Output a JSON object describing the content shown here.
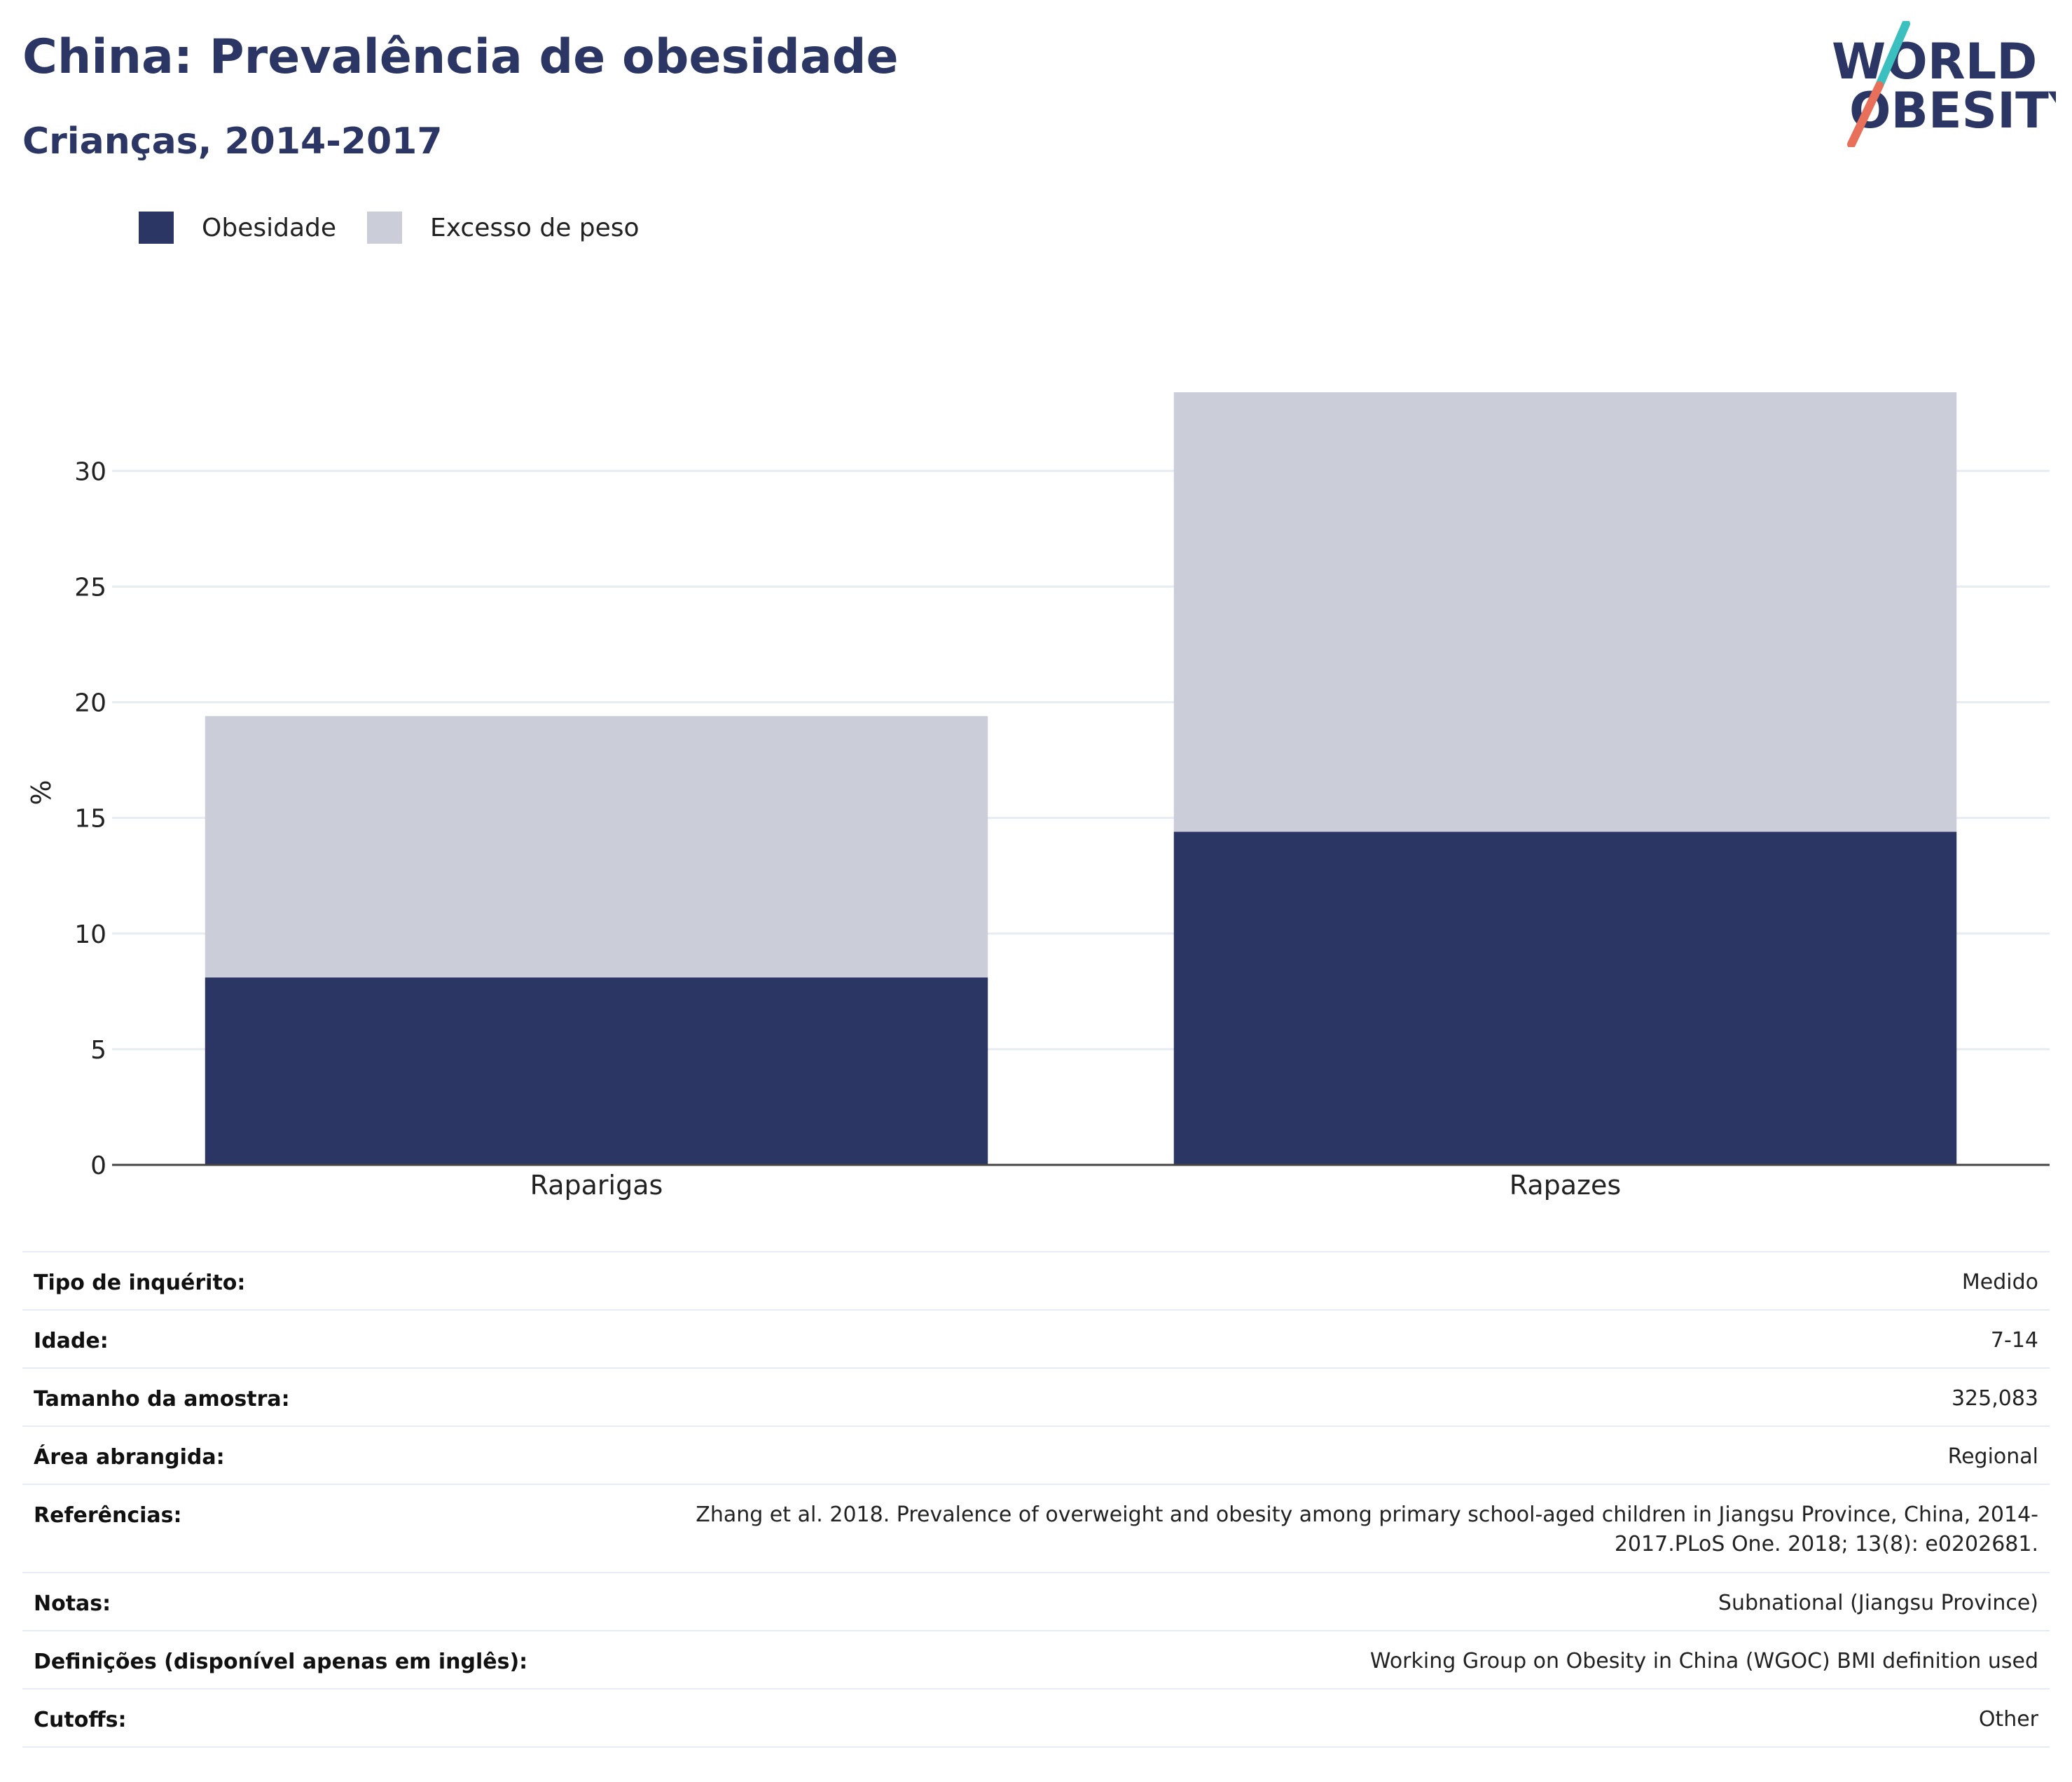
{
  "header": {
    "title": "China: Prevalência de obesidade",
    "subtitle": "Crianças, 2014-2017"
  },
  "logo": {
    "line1": "WORLD",
    "line2": "OBESITY",
    "colors": {
      "text": "#2b3664",
      "slash_top": "#3cbfbf",
      "slash_bottom": "#e8705a"
    }
  },
  "legend": [
    {
      "label": "Obesidade",
      "color": "#2b3664"
    },
    {
      "label": "Excesso de peso",
      "color": "#cbcdd9"
    }
  ],
  "chart_data": {
    "type": "bar",
    "stacked": true,
    "categories": [
      "Raparigas",
      "Rapazes"
    ],
    "series": [
      {
        "name": "Obesidade",
        "values": [
          8.1,
          14.4
        ],
        "color": "#2b3664"
      },
      {
        "name": "Excesso de peso",
        "values": [
          11.3,
          19.0
        ],
        "color": "#cbcdd9"
      }
    ],
    "ylabel": "%",
    "ylim": [
      0,
      33.4
    ],
    "yticks": [
      0,
      5,
      10,
      15,
      20,
      25,
      30
    ],
    "grid": true,
    "legend_position": "top-left"
  },
  "info": [
    {
      "key": "Tipo de inquérito:",
      "value": "Medido"
    },
    {
      "key": "Idade:",
      "value": "7-14"
    },
    {
      "key": "Tamanho da amostra:",
      "value": "325,083"
    },
    {
      "key": "Área abrangida:",
      "value": "Regional"
    },
    {
      "key": "Referências:",
      "value": "Zhang et al. 2018. Prevalence of overweight and obesity among primary school-aged children in Jiangsu Province, China, 2014-2017.PLoS One. 2018; 13(8): e0202681."
    },
    {
      "key": "Notas:",
      "value": "Subnational (Jiangsu Province)"
    },
    {
      "key": "Definições (disponível apenas em inglês):",
      "value": "Working Group on Obesity in China (WGOC) BMI definition used"
    },
    {
      "key": "Cutoffs:",
      "value": "Other"
    }
  ]
}
